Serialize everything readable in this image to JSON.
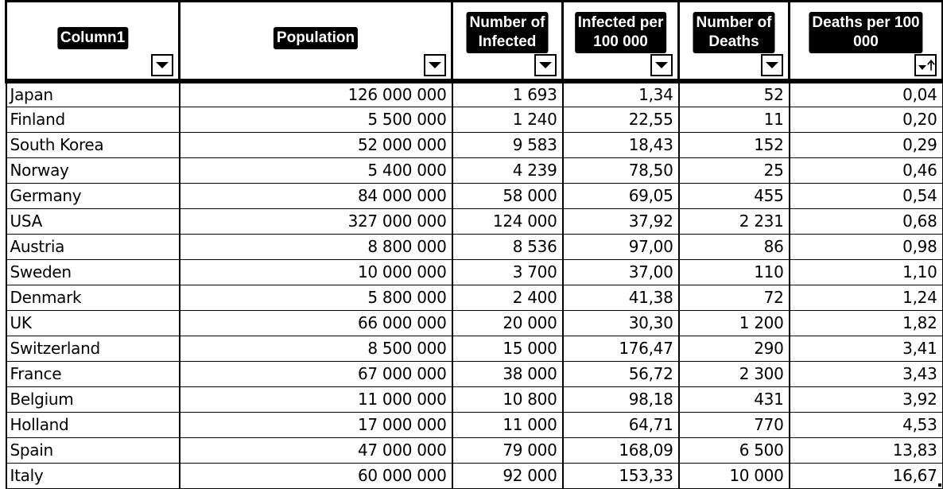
{
  "headers": [
    {
      "lines": [
        "Column1"
      ]
    },
    {
      "lines": [
        "Population"
      ]
    },
    {
      "lines": [
        "Number of",
        "Infected"
      ]
    },
    {
      "lines": [
        "Infected per",
        "100 000"
      ]
    },
    {
      "lines": [
        "Number of",
        "Deaths"
      ]
    },
    {
      "lines": [
        "Deaths per 100",
        "000"
      ],
      "sort": "ascending"
    }
  ],
  "rows": [
    [
      "Japan",
      "126 000 000",
      "1 693",
      "1,34",
      "52",
      "0,04"
    ],
    [
      "Finland",
      "5 500 000",
      "1 240",
      "22,55",
      "11",
      "0,20"
    ],
    [
      "South Korea",
      "52 000 000",
      "9 583",
      "18,43",
      "152",
      "0,29"
    ],
    [
      "Norway",
      "5 400 000",
      "4 239",
      "78,50",
      "25",
      "0,46"
    ],
    [
      "Germany",
      "84 000 000",
      "58 000",
      "69,05",
      "455",
      "0,54"
    ],
    [
      "USA",
      "327 000 000",
      "124 000",
      "37,92",
      "2 231",
      "0,68"
    ],
    [
      "Austria",
      "8 800 000",
      "8 536",
      "97,00",
      "86",
      "0,98"
    ],
    [
      "Sweden",
      "10 000 000",
      "3 700",
      "37,00",
      "110",
      "1,10"
    ],
    [
      "Denmark",
      "5 800 000",
      "2 400",
      "41,38",
      "72",
      "1,24"
    ],
    [
      "UK",
      "66 000 000",
      "20 000",
      "30,30",
      "1 200",
      "1,82"
    ],
    [
      "Switzerland",
      "8 500 000",
      "15 000",
      "176,47",
      "290",
      "3,41"
    ],
    [
      "France",
      "67 000 000",
      "38 000",
      "56,72",
      "2 300",
      "3,43"
    ],
    [
      "Belgium",
      "11 000 000",
      "10 800",
      "98,18",
      "431",
      "3,92"
    ],
    [
      "Holland",
      "17 000 000",
      "11 000",
      "64,71",
      "770",
      "4,53"
    ],
    [
      "Spain",
      "47 000 000",
      "79 000",
      "168,09",
      "6 500",
      "13,83"
    ],
    [
      "Italy",
      "60 000 000",
      "92 000",
      "153,33",
      "10 000",
      "16,67"
    ]
  ]
}
